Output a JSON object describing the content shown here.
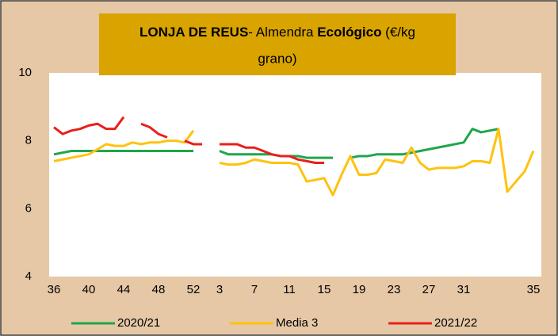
{
  "chart_data": {
    "type": "line",
    "title_parts": [
      "LONJA DE REUS",
      "- Almendra ",
      "Ecológico",
      " (€/kg",
      "grano)"
    ],
    "categories": [
      "36",
      null,
      null,
      null,
      "40",
      null,
      null,
      null,
      "44",
      null,
      null,
      null,
      "48",
      null,
      null,
      null,
      "52",
      null,
      null,
      "3",
      null,
      null,
      null,
      "7",
      null,
      null,
      null,
      "11",
      null,
      null,
      null,
      "15",
      null,
      null,
      null,
      "19",
      null,
      null,
      null,
      "23",
      null,
      null,
      null,
      "27",
      null,
      null,
      null,
      "31",
      null,
      null,
      null,
      null,
      null,
      null,
      null,
      "35"
    ],
    "ylim": [
      4,
      10
    ],
    "yticks": [
      4,
      6,
      8,
      10
    ],
    "grid": false,
    "legend": "bottom",
    "series": [
      {
        "name": "2020/21",
        "color": "#1fa64a",
        "values": [
          7.6,
          7.65,
          7.7,
          7.7,
          7.7,
          7.7,
          7.7,
          7.7,
          7.7,
          7.7,
          7.7,
          7.7,
          7.7,
          7.7,
          7.7,
          7.7,
          7.7,
          null,
          null,
          7.7,
          7.6,
          7.6,
          7.6,
          7.6,
          7.6,
          7.6,
          7.55,
          7.55,
          7.55,
          7.5,
          7.5,
          7.5,
          7.5,
          null,
          7.5,
          7.55,
          7.55,
          7.6,
          7.6,
          7.6,
          7.6,
          7.65,
          7.7,
          7.75,
          7.8,
          7.85,
          7.9,
          7.95,
          8.35,
          8.25,
          8.3,
          8.35,
          null,
          null,
          null,
          null
        ]
      },
      {
        "name": "Media 3",
        "color": "#ffc20e",
        "values": [
          7.4,
          7.45,
          7.5,
          7.55,
          7.6,
          7.75,
          7.9,
          7.85,
          7.85,
          7.95,
          7.9,
          7.95,
          7.95,
          8.0,
          8.0,
          7.95,
          8.3,
          null,
          null,
          7.35,
          7.3,
          7.3,
          7.35,
          7.45,
          7.4,
          7.35,
          7.35,
          7.35,
          7.3,
          6.8,
          6.85,
          6.9,
          6.4,
          7.0,
          7.55,
          7.0,
          7.0,
          7.05,
          7.45,
          7.4,
          7.35,
          7.8,
          7.35,
          7.15,
          7.2,
          7.2,
          7.2,
          7.25,
          7.4,
          7.4,
          7.35,
          8.35,
          6.5,
          6.8,
          7.1,
          7.7
        ]
      },
      {
        "name": "2021/22",
        "color": "#e8201c",
        "values": [
          8.4,
          8.2,
          8.3,
          8.35,
          8.45,
          8.5,
          8.35,
          8.35,
          8.7,
          null,
          8.5,
          8.4,
          8.2,
          8.1,
          null,
          8.0,
          7.9,
          7.9,
          null,
          7.9,
          7.9,
          7.9,
          7.8,
          7.8,
          7.7,
          7.6,
          7.55,
          7.55,
          7.45,
          7.4,
          7.35,
          7.35,
          null,
          null,
          null,
          null,
          null,
          null,
          null,
          null,
          null,
          null,
          null,
          null,
          null,
          null,
          null,
          null,
          null,
          null,
          null,
          null,
          null,
          null,
          null,
          null
        ]
      }
    ]
  }
}
